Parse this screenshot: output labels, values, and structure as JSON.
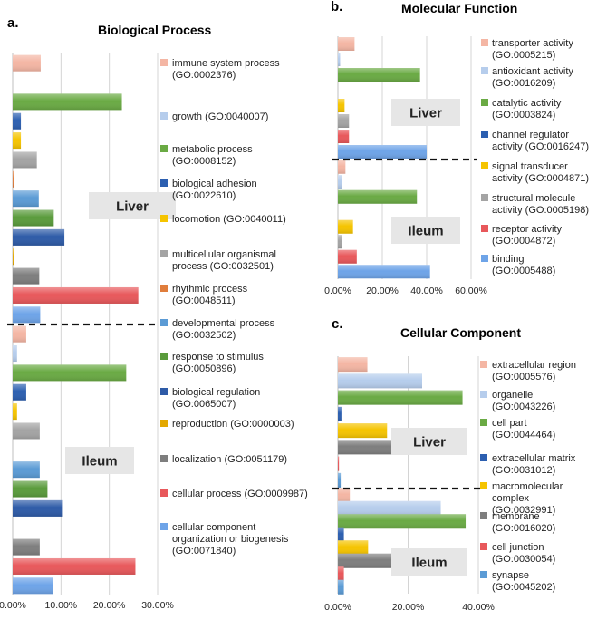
{
  "chart_data": [
    {
      "panel": "a.",
      "type": "bar",
      "orientation": "horizontal",
      "title": "Biological Process",
      "xlim": [
        0,
        30
      ],
      "tick_labels": [
        "0.00%",
        "10.00%",
        "20.00%",
        "30.00%"
      ],
      "groups": [
        "Liver",
        "Ileum"
      ],
      "series": [
        {
          "name": "immune system process (GO:0002376)",
          "color": "#f4b6a4",
          "values": {
            "Liver": 5.8,
            "Ileum": 2.8
          }
        },
        {
          "name": "growth (GO:0040007)",
          "color": "#b6cdec",
          "values": {
            "Liver": 0,
            "Ileum": 0.9
          }
        },
        {
          "name": "metabolic process (GO:0008152)",
          "color": "#6aaa44",
          "values": {
            "Liver": 22.6,
            "Ileum": 23.5
          }
        },
        {
          "name": "biological adhesion (GO:0022610)",
          "color": "#2c5fb0",
          "values": {
            "Liver": 1.7,
            "Ileum": 2.8
          }
        },
        {
          "name": "locomotion (GO:0040011)",
          "color": "#f5c400",
          "values": {
            "Liver": 1.7,
            "Ileum": 0.9
          }
        },
        {
          "name": "multicellular organismal process (GO:0032501)",
          "color": "#a4a4a4",
          "values": {
            "Liver": 5.0,
            "Ileum": 5.6
          }
        },
        {
          "name": "rhythmic process (GO:0048511)",
          "color": "#e07d3c",
          "values": {
            "Liver": 0.2,
            "Ileum": 0
          }
        },
        {
          "name": "developmental process (GO:0032502)",
          "color": "#5b9bd5",
          "values": {
            "Liver": 5.4,
            "Ileum": 5.6
          }
        },
        {
          "name": "response to stimulus (GO:0050896)",
          "color": "#5a9b3c",
          "values": {
            "Liver": 8.5,
            "Ileum": 7.2
          }
        },
        {
          "name": "biological regulation (GO:0065007)",
          "color": "#2e5ba7",
          "values": {
            "Liver": 10.7,
            "Ileum": 10.2
          }
        },
        {
          "name": "reproduction (GO:0000003)",
          "color": "#e3a800",
          "values": {
            "Liver": 0.2,
            "Ileum": 0
          }
        },
        {
          "name": "localization (GO:0051179)",
          "color": "#7e7e7e",
          "values": {
            "Liver": 5.5,
            "Ileum": 5.6
          }
        },
        {
          "name": "cellular process (GO:0009987)",
          "color": "#e8585b",
          "values": {
            "Liver": 26.0,
            "Ileum": 25.4
          }
        },
        {
          "name": "cellular component organization or biogenesis (GO:0071840)",
          "color": "#6ea4e8",
          "values": {
            "Liver": 5.7,
            "Ileum": 8.4
          }
        }
      ],
      "legend_labels": [
        [
          "immune system process",
          "(GO:0002376)"
        ],
        [
          "growth (GO:0040007)"
        ],
        [
          "metabolic process",
          "(GO:0008152)"
        ],
        [
          "biological adhesion",
          "(GO:0022610)"
        ],
        [
          "locomotion (GO:0040011)"
        ],
        [
          "multicellular organismal",
          "process (GO:0032501)"
        ],
        [
          "rhythmic process",
          "(GO:0048511)"
        ],
        [
          "developmental process",
          "(GO:0032502)"
        ],
        [
          "response to stimulus",
          "(GO:0050896)"
        ],
        [
          "biological regulation",
          "(GO:0065007)"
        ],
        [
          "reproduction (GO:0000003)"
        ],
        [
          "localization (GO:0051179)"
        ],
        [
          "cellular process (GO:0009987)"
        ],
        [
          "cellular component",
          "organization or biogenesis",
          "(GO:0071840)"
        ]
      ]
    },
    {
      "panel": "b.",
      "type": "bar",
      "orientation": "horizontal",
      "title": "Molecular Function",
      "xlim": [
        0,
        60
      ],
      "tick_labels": [
        "0.00%",
        "20.00%",
        "40.00%",
        "60.00%"
      ],
      "groups": [
        "Liver",
        "Ileum"
      ],
      "series": [
        {
          "name": "transporter activity (GO:0005215)",
          "color": "#f4b6a4",
          "values": {
            "Liver": 7.5,
            "Ileum": 3.4
          }
        },
        {
          "name": "antioxidant activity (GO:0016209)",
          "color": "#b6cdec",
          "values": {
            "Liver": 1.0,
            "Ileum": 1.7
          }
        },
        {
          "name": "catalytic activity (GO:0003824)",
          "color": "#6aaa44",
          "values": {
            "Liver": 37.0,
            "Ileum": 35.6
          }
        },
        {
          "name": "channel regulator activity (GO:0016247)",
          "color": "#2c5fb0",
          "values": {
            "Liver": 0,
            "Ileum": 0
          }
        },
        {
          "name": "signal transducer activity (GO:0004871)",
          "color": "#f5c400",
          "values": {
            "Liver": 3.0,
            "Ileum": 6.8
          }
        },
        {
          "name": "structural molecule activity (GO:0005198)",
          "color": "#a4a4a4",
          "values": {
            "Liver": 5.0,
            "Ileum": 1.7
          }
        },
        {
          "name": "receptor activity (GO:0004872)",
          "color": "#e8585b",
          "values": {
            "Liver": 5.0,
            "Ileum": 8.5
          }
        },
        {
          "name": "binding (GO:0005488)",
          "color": "#6ea4e8",
          "values": {
            "Liver": 40.0,
            "Ileum": 41.5
          }
        }
      ],
      "legend_labels": [
        [
          "transporter activity",
          "(GO:0005215)"
        ],
        [
          "antioxidant activity",
          "(GO:0016209)"
        ],
        [
          "catalytic activity",
          "(GO:0003824)"
        ],
        [
          "channel regulator",
          "activity (GO:0016247)"
        ],
        [
          "signal transducer",
          "activity (GO:0004871)"
        ],
        [
          "structural molecule",
          "activity (GO:0005198)"
        ],
        [
          "receptor activity",
          "(GO:0004872)"
        ],
        [
          "binding",
          "(GO:0005488)"
        ]
      ]
    },
    {
      "panel": "c.",
      "type": "bar",
      "orientation": "horizontal",
      "title": "Cellular Component",
      "xlim": [
        0,
        40
      ],
      "tick_labels": [
        "0.00%",
        "20.00%",
        "40.00%"
      ],
      "groups": [
        "Liver",
        "Ileum"
      ],
      "series": [
        {
          "name": "extracellular region (GO:0005576)",
          "color": "#f4b6a4",
          "values": {
            "Liver": 8.4,
            "Ileum": 3.4
          }
        },
        {
          "name": "organelle (GO:0043226)",
          "color": "#b6cdec",
          "values": {
            "Liver": 24.0,
            "Ileum": 29.3
          }
        },
        {
          "name": "cell part (GO:0044464)",
          "color": "#6aaa44",
          "values": {
            "Liver": 35.5,
            "Ileum": 36.4
          }
        },
        {
          "name": "extracellular matrix (GO:0031012)",
          "color": "#2c5fb0",
          "values": {
            "Liver": 1.0,
            "Ileum": 1.7
          }
        },
        {
          "name": "macromolecular complex (GO:0032991)",
          "color": "#f5c400",
          "values": {
            "Liver": 14.0,
            "Ileum": 8.6
          }
        },
        {
          "name": "membrane (GO:0016020)",
          "color": "#7e7e7e",
          "values": {
            "Liver": 16.0,
            "Ileum": 17.3
          }
        },
        {
          "name": "cell junction (GO:0030054)",
          "color": "#e8585b",
          "values": {
            "Liver": 0.3,
            "Ileum": 1.7
          }
        },
        {
          "name": "synapse (GO:0045202)",
          "color": "#5b9bd5",
          "values": {
            "Liver": 0.8,
            "Ileum": 1.7
          }
        }
      ],
      "legend_labels": [
        [
          "extracellular region",
          "(GO:0005576)"
        ],
        [
          "organelle",
          "(GO:0043226)"
        ],
        [
          "cell part",
          "(GO:0044464)"
        ],
        [
          "extracellular matrix",
          "(GO:0031012)"
        ],
        [
          "macromolecular",
          "complex",
          "(GO:0032991)"
        ],
        [
          "membrane",
          "(GO:0016020)"
        ],
        [
          "cell junction",
          "(GO:0030054)"
        ],
        [
          "synapse",
          "(GO:0045202)"
        ]
      ]
    }
  ]
}
